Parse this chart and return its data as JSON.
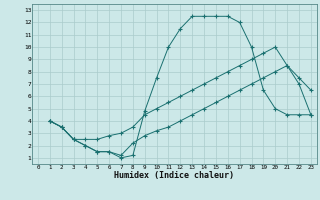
{
  "xlabel": "Humidex (Indice chaleur)",
  "bg_color": "#cce8e8",
  "line_color": "#1a7070",
  "grid_color": "#aacccc",
  "xlim": [
    -0.5,
    23.5
  ],
  "ylim": [
    0.5,
    13.5
  ],
  "xticks": [
    0,
    1,
    2,
    3,
    4,
    5,
    6,
    7,
    8,
    9,
    10,
    11,
    12,
    13,
    14,
    15,
    16,
    17,
    18,
    19,
    20,
    21,
    22,
    23
  ],
  "yticks": [
    1,
    2,
    3,
    4,
    5,
    6,
    7,
    8,
    9,
    10,
    11,
    12,
    13
  ],
  "line1_x": [
    1,
    2,
    3,
    4,
    5,
    6,
    7,
    8,
    9,
    10,
    11,
    12,
    13,
    14,
    15,
    16,
    17,
    18,
    19,
    20,
    21,
    22,
    23
  ],
  "line1_y": [
    4,
    3.5,
    2.5,
    2,
    1.5,
    1.5,
    1,
    1.2,
    4.8,
    7.5,
    10,
    11.5,
    12.5,
    12.5,
    12.5,
    12.5,
    12,
    10,
    6.5,
    5,
    4.5,
    4.5,
    4.5
  ],
  "line2_x": [
    1,
    2,
    3,
    4,
    5,
    6,
    7,
    8,
    9,
    10,
    11,
    12,
    13,
    14,
    15,
    16,
    17,
    18,
    19,
    20,
    21,
    22,
    23
  ],
  "line2_y": [
    4,
    3.5,
    2.5,
    2,
    1.5,
    1.5,
    1.2,
    2.2,
    2.8,
    3.2,
    3.5,
    4.0,
    4.5,
    5.0,
    5.5,
    6.0,
    6.5,
    7.0,
    7.5,
    8.0,
    8.5,
    7.0,
    4.5
  ],
  "line3_x": [
    1,
    2,
    3,
    4,
    5,
    6,
    7,
    8,
    9,
    10,
    11,
    12,
    13,
    14,
    15,
    16,
    17,
    18,
    19,
    20,
    21,
    22,
    23
  ],
  "line3_y": [
    4,
    3.5,
    2.5,
    2.5,
    2.5,
    2.8,
    3.0,
    3.5,
    4.5,
    5.0,
    5.5,
    6.0,
    6.5,
    7.0,
    7.5,
    8.0,
    8.5,
    9.0,
    9.5,
    10,
    8.5,
    7.5,
    6.5
  ]
}
